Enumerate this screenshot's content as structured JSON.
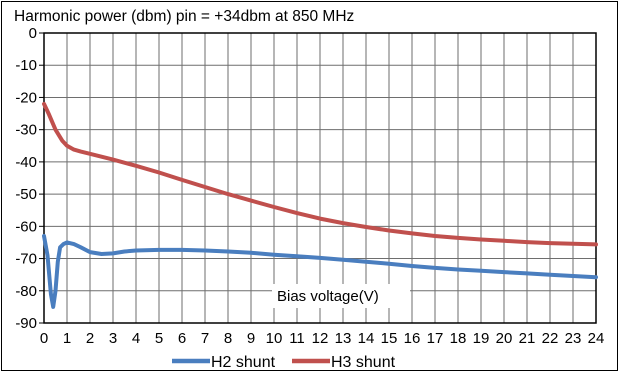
{
  "chart_data": {
    "type": "line",
    "title": "Harmonic power (dbm) pin = +34dbm at 850 MHz",
    "xlabel": "Bias voltage(V)",
    "ylabel": "",
    "xlim": [
      0,
      24
    ],
    "ylim": [
      -90,
      0
    ],
    "xticks": [
      0,
      1,
      2,
      3,
      4,
      5,
      6,
      7,
      8,
      9,
      10,
      11,
      12,
      13,
      14,
      15,
      16,
      17,
      18,
      19,
      20,
      21,
      22,
      23,
      24
    ],
    "yticks": [
      0,
      -10,
      -20,
      -30,
      -40,
      -50,
      -60,
      -70,
      -80,
      -90
    ],
    "grid": true,
    "legend_position": "bottom",
    "series": [
      {
        "name": "H2 shunt",
        "color": "#4a7ebf",
        "x": [
          0,
          0.15,
          0.3,
          0.4,
          0.5,
          0.6,
          0.7,
          0.85,
          1,
          1.3,
          1.6,
          2,
          2.5,
          3,
          3.5,
          4,
          5,
          6,
          7,
          8,
          9,
          10,
          11,
          12,
          13,
          14,
          15,
          16,
          17,
          18,
          19,
          20,
          21,
          22,
          23,
          24
        ],
        "values": [
          -63,
          -69,
          -81,
          -85,
          -80,
          -71,
          -66.5,
          -65.5,
          -65,
          -65.5,
          -66.5,
          -68,
          -68.6,
          -68.4,
          -67.8,
          -67.5,
          -67.3,
          -67.3,
          -67.5,
          -67.8,
          -68.2,
          -68.8,
          -69.3,
          -69.8,
          -70.4,
          -71,
          -71.6,
          -72.3,
          -72.9,
          -73.4,
          -73.8,
          -74.2,
          -74.6,
          -75,
          -75.4,
          -75.8
        ]
      },
      {
        "name": "H3 shunt",
        "color": "#c0504d",
        "x": [
          0,
          0.2,
          0.5,
          0.8,
          1,
          1.3,
          1.6,
          2,
          3,
          4,
          5,
          6,
          7,
          8,
          9,
          10,
          11,
          12,
          13,
          14,
          15,
          16,
          17,
          18,
          19,
          20,
          21,
          22,
          23,
          24
        ],
        "values": [
          -22,
          -25,
          -30,
          -33.5,
          -35,
          -36.2,
          -36.8,
          -37.5,
          -39.3,
          -41.2,
          -43.3,
          -45.6,
          -47.8,
          -50,
          -52,
          -54,
          -55.9,
          -57.6,
          -59,
          -60.2,
          -61.3,
          -62.2,
          -63,
          -63.6,
          -64.1,
          -64.5,
          -64.9,
          -65.2,
          -65.4,
          -65.6
        ]
      }
    ]
  }
}
